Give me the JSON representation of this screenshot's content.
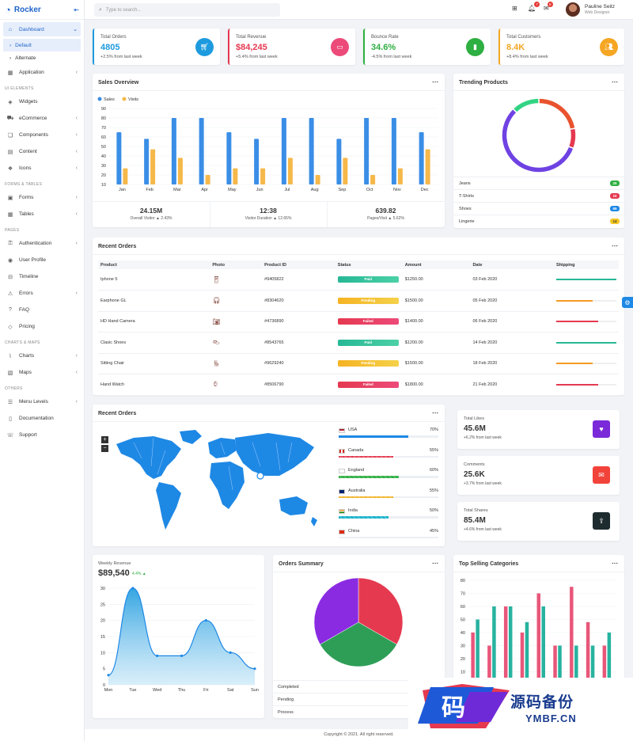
{
  "brand": {
    "name": "Rocker"
  },
  "search": {
    "placeholder": "Type to search..."
  },
  "topbar": {
    "badge_notif": "7",
    "badge_msg": "8"
  },
  "user": {
    "name": "Pauline Seitz",
    "role": "Web Designer"
  },
  "sidebar": {
    "dashboard": "Dashboard",
    "default": "Default",
    "alternate": "Alternate",
    "application": "Application",
    "sec_ui": "UI ELEMENTS",
    "widgets": "Widgets",
    "ecommerce": "eCommerce",
    "components": "Components",
    "content": "Content",
    "icons": "Icons",
    "sec_forms": "FORMS & TABLES",
    "forms": "Forms",
    "tables": "Tables",
    "sec_pages": "PAGES",
    "authentication": "Authentication",
    "user_profile": "User Profile",
    "timeline": "Timeline",
    "errors": "Errors",
    "faq": "FAQ",
    "pricing": "Pricing",
    "sec_charts": "CHARTS & MAPS",
    "charts": "Charts",
    "maps": "Maps",
    "sec_others": "OTHERS",
    "menu_levels": "Menu Levels",
    "documentation": "Documentation",
    "support": "Support"
  },
  "stats": [
    {
      "label": "Total Orders",
      "value": "4805",
      "change": "+2.5% from last week",
      "color": "#1e9bde"
    },
    {
      "label": "Total Revenue",
      "value": "$84,245",
      "change": "+5.4% from last week",
      "color": "#e53950"
    },
    {
      "label": "Bounce Rate",
      "value": "34.6%",
      "change": "-4.5% from last week",
      "color": "#2eaf41"
    },
    {
      "label": "Total Customers",
      "value": "8.4K",
      "change": "+8.4% from last week",
      "color": "#f5a623"
    }
  ],
  "sales": {
    "title": "Sales Overview",
    "legend_sales": "Sales",
    "legend_visits": "Visits",
    "visitor_val": "24.15M",
    "visitor_lbl": "Overall Visitor ▲ 2.43%",
    "duration_val": "12:38",
    "duration_lbl": "Visitor Duration ▲ 12.65%",
    "pages_val": "639.82",
    "pages_lbl": "Pages/Visit ▲ 5.62%"
  },
  "trending": {
    "title": "Trending Products",
    "items": [
      {
        "name": "Jeans",
        "count": "25"
      },
      {
        "name": "T-Shirts",
        "count": "10"
      },
      {
        "name": "Shoes",
        "count": "65"
      },
      {
        "name": "Lingerie",
        "count": "14"
      }
    ]
  },
  "recent": {
    "title": "Recent Orders",
    "headers": [
      "Product",
      "Photo",
      "Product ID",
      "Status",
      "Amount",
      "Date",
      "Shipping"
    ],
    "rows": [
      {
        "product": "Iphone 5",
        "id": "#9405822",
        "status": "Paid",
        "amount": "$1250.00",
        "date": "03 Feb 2020"
      },
      {
        "product": "Earphone GL",
        "id": "#8304620",
        "status": "Pending",
        "amount": "$1500.00",
        "date": "05 Feb 2020"
      },
      {
        "product": "HD Hand Camera",
        "id": "#4736890",
        "status": "Failed",
        "amount": "$1400.00",
        "date": "06 Feb 2020"
      },
      {
        "product": "Clasic Shoes",
        "id": "#8543765",
        "status": "Paid",
        "amount": "$1200.00",
        "date": "14 Feb 2020"
      },
      {
        "product": "Sitting Chair",
        "id": "#9629240",
        "status": "Pending",
        "amount": "$1500.00",
        "date": "18 Feb 2020"
      },
      {
        "product": "Hand Watch",
        "id": "#8506790",
        "status": "Failed",
        "amount": "$1800.00",
        "date": "21 Feb 2020"
      }
    ]
  },
  "map": {
    "title": "Recent Orders",
    "zoom_in": "+",
    "zoom_out": "−",
    "countries": [
      {
        "name": "USA",
        "pct": "70%",
        "value": 70,
        "color": "#1e88e5"
      },
      {
        "name": "Canada",
        "pct": "55%",
        "value": 55,
        "color": "#e53950"
      },
      {
        "name": "England",
        "pct": "60%",
        "value": 60,
        "color": "#2eaf41"
      },
      {
        "name": "Australia",
        "pct": "55%",
        "value": 55,
        "color": "#f5b323"
      },
      {
        "name": "India",
        "pct": "50%",
        "value": 50,
        "color": "#17b3c9"
      },
      {
        "name": "China",
        "pct": "45%",
        "value": 45,
        "color": "#222"
      }
    ]
  },
  "social": [
    {
      "label": "Total Likes",
      "value": "45.6M",
      "change": "+6.2% from last week",
      "color": "#7a2ad8",
      "icon": "heart-icon",
      "glyph": "♥"
    },
    {
      "label": "Comments",
      "value": "25.6K",
      "change": "+3.7% from last week",
      "color": "#f2433a",
      "icon": "comment-icon",
      "glyph": "✉"
    },
    {
      "label": "Total Shares",
      "value": "85.4M",
      "change": "+4.6% from last week",
      "color": "#1f2c2f",
      "icon": "share-icon",
      "glyph": "⇪"
    }
  ],
  "weekly": {
    "label": "Weekly Revenue",
    "value": "$89,540",
    "change": "4.4%"
  },
  "orders_summary": {
    "title": "Orders Summary",
    "rows": [
      "Completed",
      "Pending",
      "Process"
    ]
  },
  "top_selling": {
    "title": "Top Selling Categories"
  },
  "footer": "Copyright © 2021. All right reserved.",
  "watermark": {
    "text1": "源码备份",
    "text2": "YMBF.CN",
    "glyph": "码"
  },
  "chart_data": [
    {
      "type": "bar",
      "title": "Sales Overview",
      "categories": [
        "Jan",
        "Feb",
        "Mar",
        "Apr",
        "May",
        "Jun",
        "Jul",
        "Aug",
        "Sep",
        "Oct",
        "Nov",
        "Dec"
      ],
      "series": [
        {
          "name": "Sales",
          "values": [
            65,
            58,
            80,
            80,
            65,
            58,
            80,
            80,
            58,
            80,
            80,
            65
          ],
          "color": "#3a8ee6"
        },
        {
          "name": "Visits",
          "values": [
            27,
            47,
            38,
            20,
            27,
            27,
            38,
            20,
            38,
            20,
            27,
            47
          ],
          "color": "#f5b84a"
        }
      ],
      "ylim": [
        10,
        90
      ],
      "yticks": [
        10,
        20,
        30,
        40,
        50,
        60,
        70,
        80,
        90
      ]
    },
    {
      "type": "pie",
      "title": "Trending Products",
      "donut": true,
      "labels": [
        "Jeans",
        "T-Shirts",
        "Shoes",
        "Lingerie"
      ],
      "values": [
        25,
        10,
        65,
        14
      ],
      "colors": [
        "#e8532e",
        "#e53950",
        "#6f42e3",
        "#32d484"
      ]
    },
    {
      "type": "area",
      "title": "Weekly Revenue",
      "categories": [
        "Mon",
        "Tue",
        "Wed",
        "Thu",
        "Fri",
        "Sat",
        "Sun"
      ],
      "values": [
        3,
        30,
        9,
        9,
        20,
        10,
        5
      ],
      "ylim": [
        0,
        30
      ],
      "yticks": [
        0,
        5,
        10,
        15,
        20,
        25,
        30
      ]
    },
    {
      "type": "pie",
      "title": "Orders Summary",
      "labels": [
        "Completed",
        "Pending",
        "Process"
      ],
      "values": [
        1,
        1,
        1
      ],
      "colors": [
        "#e53950",
        "#2e9e57",
        "#8a2be2"
      ]
    },
    {
      "type": "bar",
      "title": "Top Selling Categories",
      "categories": [
        "1",
        "2",
        "3",
        "4",
        "5",
        "6",
        "7",
        "8",
        "9"
      ],
      "series": [
        {
          "name": "",
          "values": [
            40,
            30,
            60,
            40,
            70,
            30,
            75,
            48,
            30
          ],
          "color": "#e8577a"
        },
        {
          "name": "",
          "values": [
            50,
            60,
            60,
            48,
            60,
            30,
            30,
            30,
            40
          ],
          "color": "#27b3a0"
        }
      ],
      "ylim": [
        0,
        80
      ],
      "yticks": [
        0,
        10,
        20,
        30,
        40,
        50,
        60,
        70,
        80
      ]
    }
  ]
}
